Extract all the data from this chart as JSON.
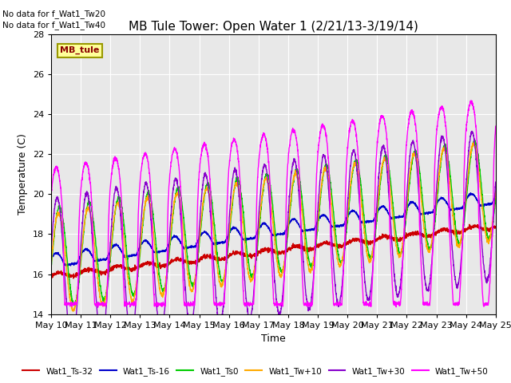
{
  "title": "MB Tule Tower: Open Water 1 (2/21/13-3/19/14)",
  "xlabel": "Time",
  "ylabel": "Temperature (C)",
  "ylim": [
    14,
    28
  ],
  "yticks": [
    14,
    16,
    18,
    20,
    22,
    24,
    26,
    28
  ],
  "num_days": 15,
  "bg_color": "#e8e8e8",
  "note1": "No data for f_Wat1_Tw20",
  "note2": "No data for f_Wat1_Tw40",
  "legend_box_label": "MB_tule",
  "legend_box_color": "#ffff99",
  "legend_box_border": "#999900",
  "series_colors": {
    "Wat1_Ts-32": "#cc0000",
    "Wat1_Ts-16": "#0000cc",
    "Wat1_Ts0": "#00cc00",
    "Wat1_Tw+10": "#ffaa00",
    "Wat1_Tw+30": "#8800cc",
    "Wat1_Tw+50": "#ff00ff"
  },
  "xtick_labels": [
    "May 10",
    "May 11",
    "May 12",
    "May 13",
    "May 14",
    "May 15",
    "May 16",
    "May 17",
    "May 18",
    "May 19",
    "May 20",
    "May 21",
    "May 22",
    "May 23",
    "May 24",
    "May 25"
  ]
}
